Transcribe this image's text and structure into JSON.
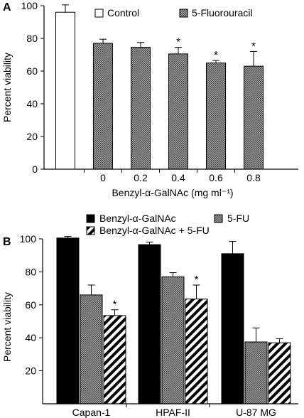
{
  "chart_data": [
    {
      "panel": "A",
      "type": "bar",
      "categories": [
        "",
        "0",
        "0.2",
        "0.4",
        "0.6",
        "0.8"
      ],
      "xlabel": "Benzyl-α-GalNAc (mg ml⁻¹)",
      "ylabel": "Percent viability",
      "ylim": [
        0,
        100
      ],
      "yticks": [
        "0",
        "20",
        "40",
        "60",
        "80",
        "100"
      ],
      "grid": false,
      "legend_position": "top",
      "series": [
        {
          "name": "Control",
          "pattern": "white",
          "values": [
            96,
            null,
            null,
            null,
            null,
            null
          ],
          "errors": [
            4.5,
            null,
            null,
            null,
            null,
            null
          ]
        },
        {
          "name": "5-Fluorouracil",
          "pattern": "stipple",
          "values": [
            null,
            77,
            74.5,
            70.5,
            65,
            63
          ],
          "errors": [
            null,
            2.5,
            3,
            4,
            1.5,
            9
          ]
        }
      ],
      "annotations": [
        {
          "category": "0.4",
          "text": "*"
        },
        {
          "category": "0.6",
          "text": "*"
        },
        {
          "category": "0.8",
          "text": "*"
        }
      ]
    },
    {
      "panel": "B",
      "type": "bar",
      "categories": [
        "Capan-1",
        "HPAF-II",
        "U-87 MG"
      ],
      "xlabel": "",
      "ylabel": "Percent viability",
      "ylim": [
        0,
        100
      ],
      "yticks": [
        "20",
        "40",
        "60",
        "80",
        "100"
      ],
      "grid": false,
      "legend_position": "top",
      "series": [
        {
          "name": "Benzyl-α-GalNAc",
          "pattern": "black",
          "values": [
            100.5,
            96.5,
            91
          ],
          "errors": [
            1,
            1.5,
            7.5
          ]
        },
        {
          "name": "5-FU",
          "pattern": "stipple",
          "values": [
            66,
            77,
            37.5
          ],
          "errors": [
            6,
            2.5,
            8.5
          ]
        },
        {
          "name": "Benzyl-α-GalNAc + 5-FU",
          "pattern": "hatch",
          "values": [
            53.5,
            63.5,
            37
          ],
          "errors": [
            3.5,
            8.5,
            2.5
          ]
        }
      ],
      "annotations": [
        {
          "category": "Capan-1",
          "series": 2,
          "text": "*"
        },
        {
          "category": "HPAF-II",
          "series": 2,
          "text": "*"
        }
      ]
    }
  ],
  "labels": {
    "panelA": "A",
    "panelB": "B"
  },
  "colors": {
    "black": "#000000",
    "white": "#ffffff",
    "stipple_bg": "#a8a8a8",
    "stipple_dot": "#3a3a3a"
  }
}
